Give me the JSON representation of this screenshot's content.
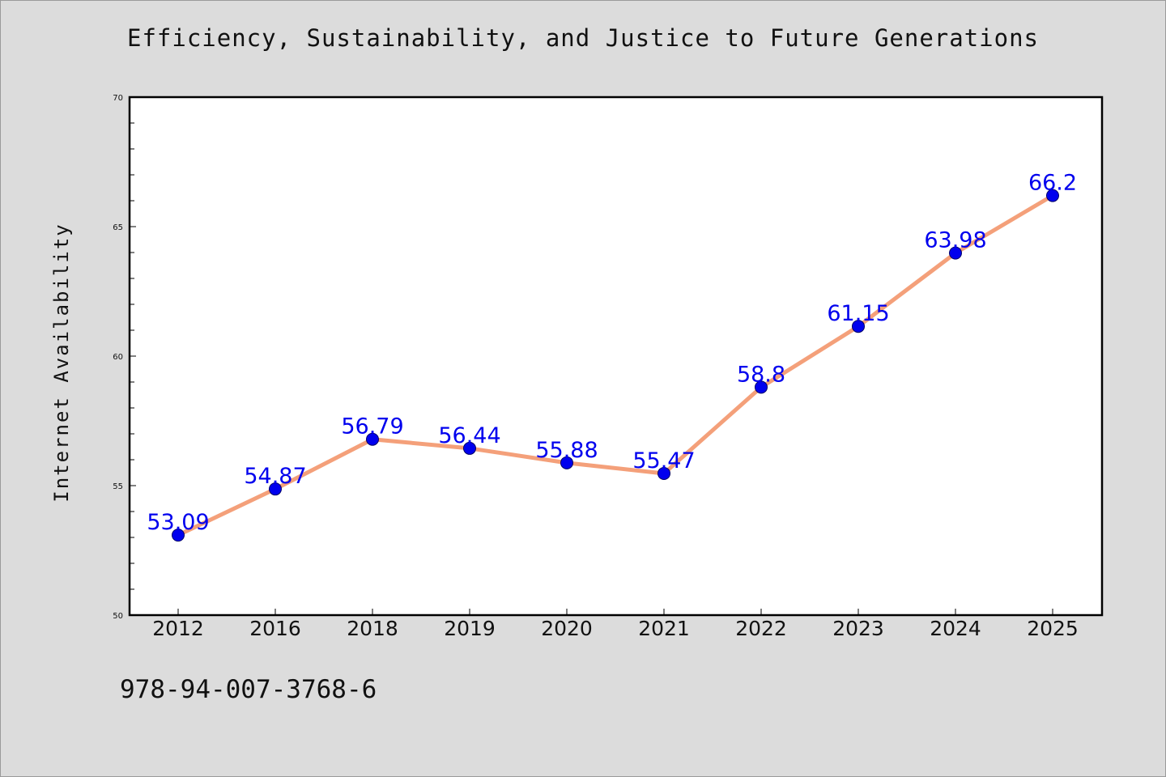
{
  "chart_data": {
    "type": "line",
    "title": "Efficiency, Sustainability, and Justice to Future Generations",
    "xlabel": "",
    "ylabel": "Internet Availability",
    "categories": [
      "2012",
      "2016",
      "2018",
      "2019",
      "2020",
      "2021",
      "2022",
      "2023",
      "2024",
      "2025"
    ],
    "series": [
      {
        "values": [
          53.09,
          54.87,
          56.79,
          56.44,
          55.88,
          55.47,
          58.8,
          61.15,
          63.98,
          66.2
        ],
        "labels": [
          "53.09",
          "54.87",
          "56.79",
          "56.44",
          "55.88",
          "55.47",
          "58.8",
          "61.15",
          "63.98",
          "66.2"
        ],
        "line_color": "#f4a07a",
        "marker_color": "#0000ee"
      }
    ],
    "ylim": [
      50,
      70
    ],
    "yticks": [
      "50",
      "55",
      "60",
      "65",
      "70"
    ],
    "grid": false,
    "legend": "none"
  },
  "footer": {
    "isbn": "978-94-007-3768-6"
  },
  "colors": {
    "background": "#dcdcdc",
    "plot_background": "#ffffff",
    "line": "#f4a07a",
    "marker": "#0000ee",
    "label": "#0000ee"
  }
}
